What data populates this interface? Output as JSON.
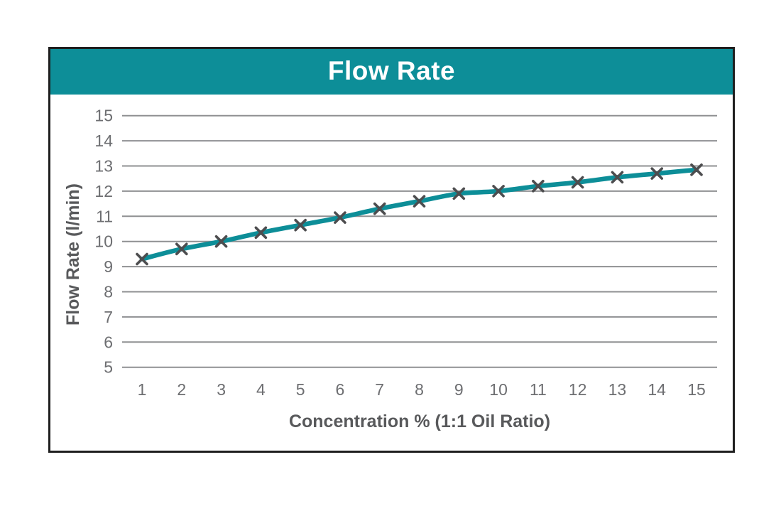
{
  "window": {
    "background": "#ffffff"
  },
  "chart": {
    "title": "Flow Rate",
    "colors": {
      "header_bg": "#0D8E98",
      "title_text": "#ffffff",
      "box_border": "#1f1f1f",
      "line": "#0D8E98",
      "marker": "#4d4d4f",
      "gridline": "#8f9092",
      "tick_text": "#6d6e71",
      "axis_label_text": "#58595b"
    }
  },
  "chart_data": {
    "type": "line",
    "title": "Flow Rate",
    "xlabel": "Concentration % (1:1 Oil Ratio)",
    "ylabel": "Flow Rate (l/min)",
    "x": [
      1,
      2,
      3,
      4,
      5,
      6,
      7,
      8,
      9,
      10,
      11,
      12,
      13,
      14,
      15
    ],
    "series": [
      {
        "name": "Flow Rate",
        "values": [
          9.3,
          9.7,
          10.0,
          10.35,
          10.65,
          10.95,
          11.3,
          11.6,
          11.9,
          12.0,
          12.2,
          12.35,
          12.55,
          12.7,
          12.85
        ]
      }
    ],
    "ylim": [
      5,
      15
    ],
    "ytick_step": 1,
    "grid": "horizontal-only",
    "legend": "none",
    "marker": "x",
    "line_smoothing": true
  }
}
